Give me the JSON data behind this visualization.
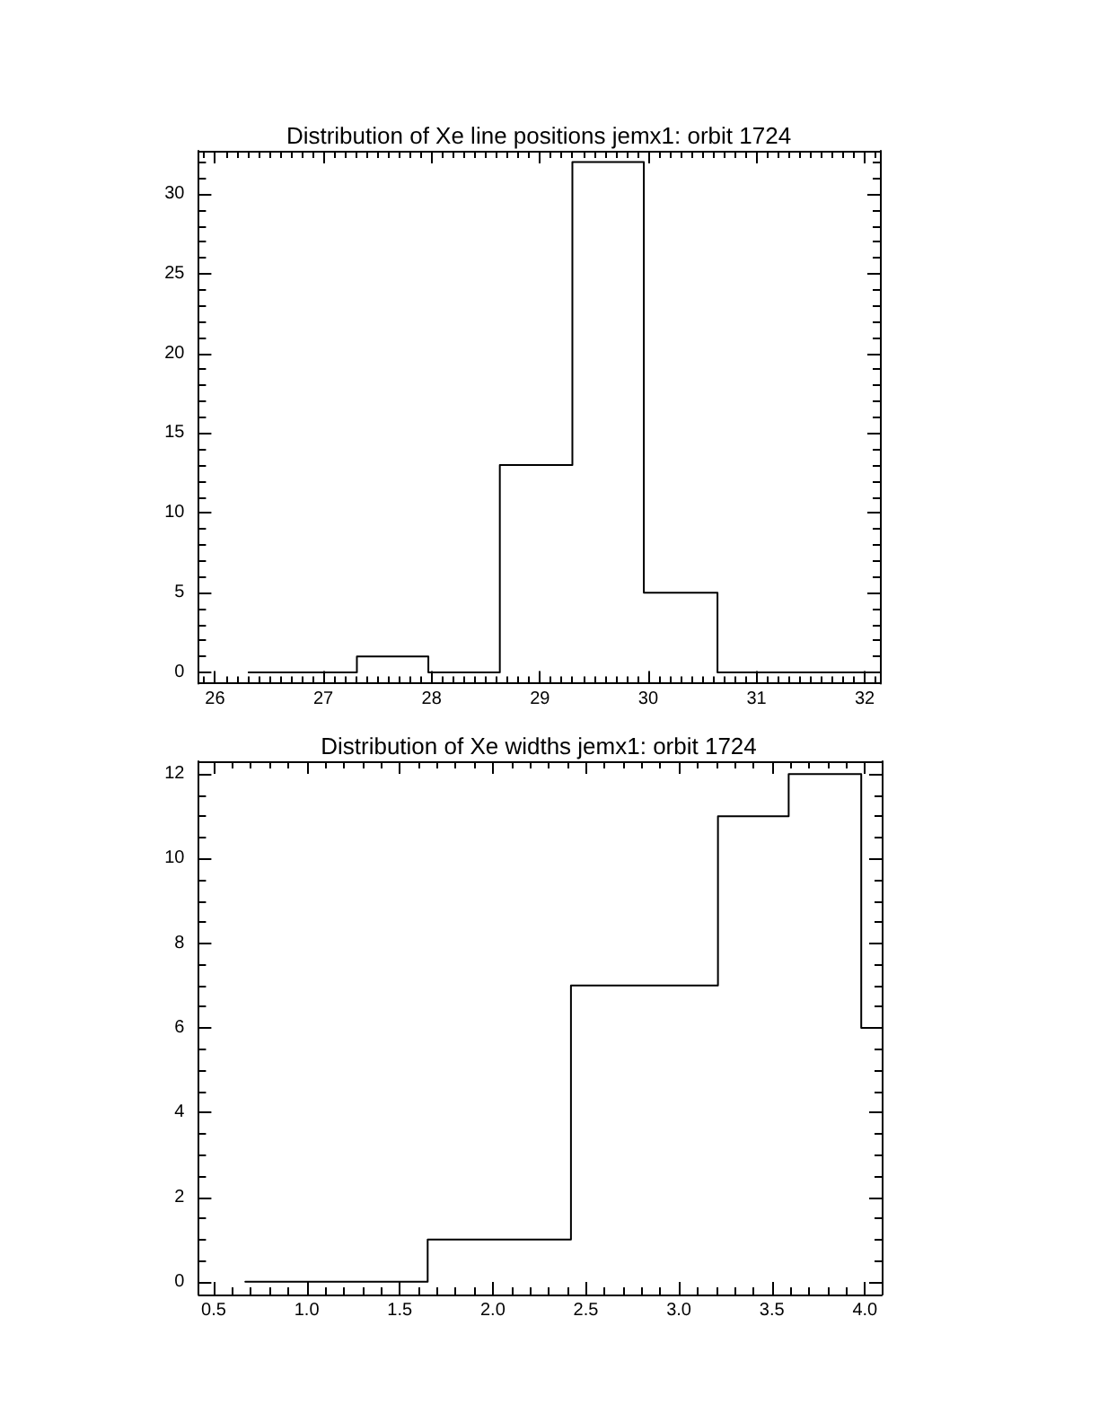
{
  "chart_data": [
    {
      "type": "step",
      "title": "Distribution of Xe line positions jemx1: orbit 1724",
      "x": [
        26.31,
        27.31,
        27.97,
        28.63,
        29.3,
        29.96,
        30.64,
        32.14
      ],
      "values": [
        0,
        1,
        0,
        13,
        32,
        5,
        0,
        0
      ],
      "color": "#000000",
      "xlim": [
        25.85,
        32.14
      ],
      "ylim": [
        -0.7,
        32.7
      ],
      "xticks": [
        {
          "value": 25.9,
          "label": null
        },
        26,
        {
          "value": 26.1,
          "label": null
        },
        {
          "value": 26.2,
          "label": null
        },
        {
          "value": 26.3,
          "label": null
        },
        {
          "value": 26.4,
          "label": null
        },
        {
          "value": 26.5,
          "label": null
        },
        {
          "value": 26.6,
          "label": null
        },
        {
          "value": 26.7,
          "label": null
        },
        {
          "value": 26.8,
          "label": null
        },
        {
          "value": 26.9,
          "label": null
        },
        27,
        {
          "value": 27.1,
          "label": null
        },
        {
          "value": 27.2,
          "label": null
        },
        {
          "value": 27.3,
          "label": null
        },
        {
          "value": 27.4,
          "label": null
        },
        {
          "value": 27.5,
          "label": null
        },
        {
          "value": 27.6,
          "label": null
        },
        {
          "value": 27.7,
          "label": null
        },
        {
          "value": 27.8,
          "label": null
        },
        {
          "value": 27.9,
          "label": null
        },
        28,
        {
          "value": 28.1,
          "label": null
        },
        {
          "value": 28.2,
          "label": null
        },
        {
          "value": 28.3,
          "label": null
        },
        {
          "value": 28.4,
          "label": null
        },
        {
          "value": 28.5,
          "label": null
        },
        {
          "value": 28.6,
          "label": null
        },
        {
          "value": 28.7,
          "label": null
        },
        {
          "value": 28.8,
          "label": null
        },
        {
          "value": 28.9,
          "label": null
        },
        29,
        {
          "value": 29.1,
          "label": null
        },
        {
          "value": 29.2,
          "label": null
        },
        {
          "value": 29.3,
          "label": null
        },
        {
          "value": 29.4,
          "label": null
        },
        {
          "value": 29.5,
          "label": null
        },
        {
          "value": 29.6,
          "label": null
        },
        {
          "value": 29.7,
          "label": null
        },
        {
          "value": 29.8,
          "label": null
        },
        {
          "value": 29.9,
          "label": null
        },
        30,
        {
          "value": 30.1,
          "label": null
        },
        {
          "value": 30.2,
          "label": null
        },
        {
          "value": 30.3,
          "label": null
        },
        {
          "value": 30.4,
          "label": null
        },
        {
          "value": 30.5,
          "label": null
        },
        {
          "value": 30.6,
          "label": null
        },
        {
          "value": 30.7,
          "label": null
        },
        {
          "value": 30.8,
          "label": null
        },
        {
          "value": 30.9,
          "label": null
        },
        31,
        {
          "value": 31.1,
          "label": null
        },
        {
          "value": 31.2,
          "label": null
        },
        {
          "value": 31.3,
          "label": null
        },
        {
          "value": 31.4,
          "label": null
        },
        {
          "value": 31.5,
          "label": null
        },
        {
          "value": 31.6,
          "label": null
        },
        {
          "value": 31.7,
          "label": null
        },
        {
          "value": 31.8,
          "label": null
        },
        {
          "value": 31.9,
          "label": null
        },
        32,
        {
          "value": 32.1,
          "label": null
        }
      ],
      "yticks": [
        0,
        {
          "value": 1,
          "label": null
        },
        {
          "value": 2,
          "label": null
        },
        {
          "value": 3,
          "label": null
        },
        {
          "value": 4,
          "label": null
        },
        5,
        {
          "value": 6,
          "label": null
        },
        {
          "value": 7,
          "label": null
        },
        {
          "value": 8,
          "label": null
        },
        {
          "value": 9,
          "label": null
        },
        10,
        {
          "value": 11,
          "label": null
        },
        {
          "value": 12,
          "label": null
        },
        {
          "value": 13,
          "label": null
        },
        {
          "value": 14,
          "label": null
        },
        15,
        {
          "value": 16,
          "label": null
        },
        {
          "value": 17,
          "label": null
        },
        {
          "value": 18,
          "label": null
        },
        {
          "value": 19,
          "label": null
        },
        20,
        {
          "value": 21,
          "label": null
        },
        {
          "value": 22,
          "label": null
        },
        {
          "value": 23,
          "label": null
        },
        {
          "value": 24,
          "label": null
        },
        25,
        {
          "value": 26,
          "label": null
        },
        {
          "value": 27,
          "label": null
        },
        {
          "value": 28,
          "label": null
        },
        {
          "value": 29,
          "label": null
        },
        30,
        {
          "value": 31,
          "label": null
        },
        {
          "value": 32,
          "label": null
        }
      ]
    },
    {
      "type": "step",
      "title": "Distribution of Xe widths jemx1: orbit 1724",
      "x": [
        0.67,
        1.65,
        2.42,
        3.21,
        3.59,
        3.98,
        4.09
      ],
      "values": [
        0,
        1,
        7,
        11,
        12,
        6,
        6
      ],
      "color": "#000000",
      "xlim": [
        0.42,
        4.09
      ],
      "ylim": [
        -0.3,
        12.3
      ],
      "xticks": [
        0.5,
        {
          "value": 0.6,
          "label": null
        },
        {
          "value": 0.7,
          "label": null
        },
        {
          "value": 0.8,
          "label": null
        },
        {
          "value": 0.9,
          "label": null
        },
        {
          "value": 1,
          "label": "1.0"
        },
        {
          "value": 1.1,
          "label": null
        },
        {
          "value": 1.2,
          "label": null
        },
        {
          "value": 1.3,
          "label": null
        },
        {
          "value": 1.4,
          "label": null
        },
        1.5,
        {
          "value": 1.6,
          "label": null
        },
        {
          "value": 1.7,
          "label": null
        },
        {
          "value": 1.8,
          "label": null
        },
        {
          "value": 1.9,
          "label": null
        },
        {
          "value": 2,
          "label": "2.0"
        },
        {
          "value": 2.1,
          "label": null
        },
        {
          "value": 2.2,
          "label": null
        },
        {
          "value": 2.3,
          "label": null
        },
        {
          "value": 2.4,
          "label": null
        },
        2.5,
        {
          "value": 2.6,
          "label": null
        },
        {
          "value": 2.7,
          "label": null
        },
        {
          "value": 2.8,
          "label": null
        },
        {
          "value": 2.9,
          "label": null
        },
        {
          "value": 3,
          "label": "3.0"
        },
        {
          "value": 3.1,
          "label": null
        },
        {
          "value": 3.2,
          "label": null
        },
        {
          "value": 3.3,
          "label": null
        },
        {
          "value": 3.4,
          "label": null
        },
        3.5,
        {
          "value": 3.6,
          "label": null
        },
        {
          "value": 3.7,
          "label": null
        },
        {
          "value": 3.8,
          "label": null
        },
        {
          "value": 3.9,
          "label": null
        },
        {
          "value": 4,
          "label": "4.0"
        }
      ],
      "yticks": [
        0,
        {
          "value": 0.5,
          "label": null
        },
        {
          "value": 1,
          "label": null
        },
        {
          "value": 1.5,
          "label": null
        },
        2,
        {
          "value": 2.5,
          "label": null
        },
        {
          "value": 3,
          "label": null
        },
        {
          "value": 3.5,
          "label": null
        },
        4,
        {
          "value": 4.5,
          "label": null
        },
        {
          "value": 5,
          "label": null
        },
        {
          "value": 5.5,
          "label": null
        },
        6,
        {
          "value": 6.5,
          "label": null
        },
        {
          "value": 7,
          "label": null
        },
        {
          "value": 7.5,
          "label": null
        },
        8,
        {
          "value": 8.5,
          "label": null
        },
        {
          "value": 9,
          "label": null
        },
        {
          "value": 9.5,
          "label": null
        },
        10,
        {
          "value": 10.5,
          "label": null
        },
        {
          "value": 11,
          "label": null
        },
        {
          "value": 11.5,
          "label": null
        },
        12
      ]
    }
  ]
}
